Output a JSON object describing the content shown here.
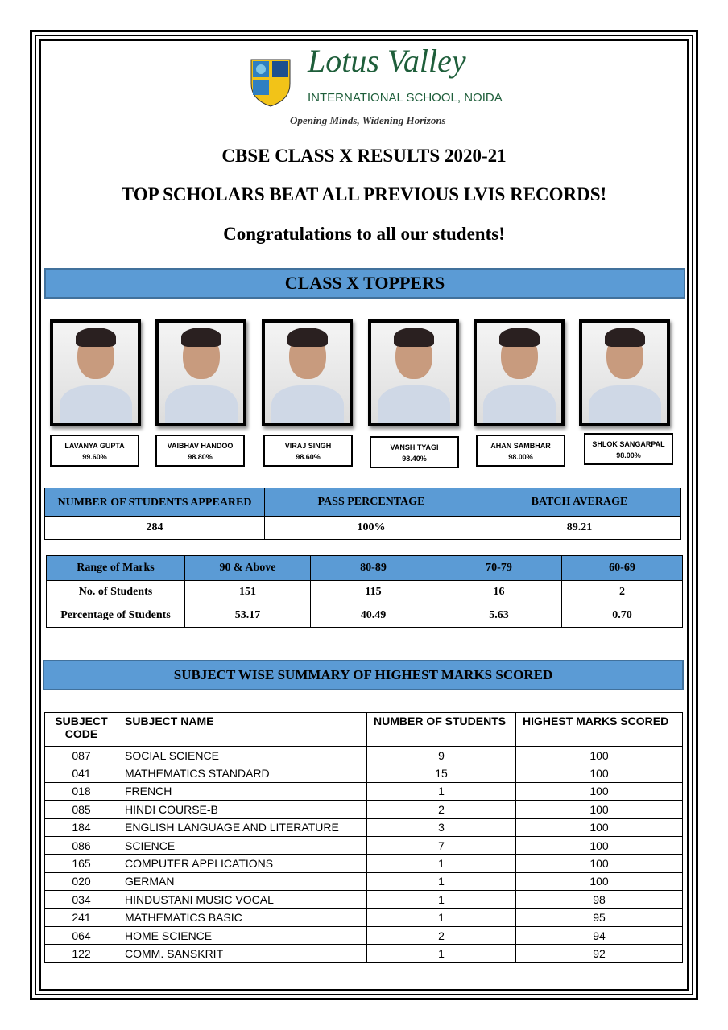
{
  "logo": {
    "name": "Lotus Valley",
    "school": "INTERNATIONAL SCHOOL, NOIDA",
    "tagline": "Opening Minds, Widening Horizons"
  },
  "headings": {
    "title": "CBSE CLASS X RESULTS 2020-21",
    "subtitle": "TOP SCHOLARS BEAT ALL PREVIOUS LVIS RECORDS!",
    "congrats": "Congratulations to all our students!",
    "toppers_banner": "CLASS X TOPPERS",
    "subject_banner": "SUBJECT WISE SUMMARY OF HIGHEST MARKS SCORED"
  },
  "toppers": [
    {
      "name": "LAVANYA GUPTA",
      "score": "99.60%"
    },
    {
      "name": "VAIBHAV HANDOO",
      "score": "98.80%"
    },
    {
      "name": "VIRAJ SINGH",
      "score": "98.60%"
    },
    {
      "name": "VANSH TYAGI",
      "score": "98.40%"
    },
    {
      "name": "AHAN SAMBHAR",
      "score": "98.00%"
    },
    {
      "name": "SHLOK SANGARPAL",
      "score": "98.00%"
    }
  ],
  "stats": {
    "headers": [
      "NUMBER OF STUDENTS APPEARED",
      "PASS PERCENTAGE",
      "BATCH AVERAGE"
    ],
    "values": [
      "284",
      "100%",
      "89.21"
    ]
  },
  "ranges": {
    "headers": [
      "Range of Marks",
      "90 & Above",
      "80-89",
      "70-79",
      "60-69"
    ],
    "rows": [
      [
        "No. of Students",
        "151",
        "115",
        "16",
        "2"
      ],
      [
        "Percentage of Students",
        "53.17",
        "40.49",
        "5.63",
        "0.70"
      ]
    ]
  },
  "subjects": {
    "headers": [
      "SUBJECT CODE",
      "SUBJECT NAME",
      "NUMBER OF STUDENTS",
      "HIGHEST MARKS SCORED"
    ],
    "rows": [
      [
        "087",
        "SOCIAL SCIENCE",
        "9",
        "100"
      ],
      [
        "041",
        "MATHEMATICS STANDARD",
        "15",
        "100"
      ],
      [
        "018",
        "FRENCH",
        "1",
        "100"
      ],
      [
        "085",
        "HINDI COURSE-B",
        "2",
        "100"
      ],
      [
        "184",
        "ENGLISH LANGUAGE AND LITERATURE",
        "3",
        "100"
      ],
      [
        "086",
        "SCIENCE",
        "7",
        "100"
      ],
      [
        "165",
        "COMPUTER APPLICATIONS",
        "1",
        "100"
      ],
      [
        "020",
        "GERMAN",
        "1",
        "100"
      ],
      [
        "034",
        "HINDUSTANI MUSIC VOCAL",
        "1",
        "98"
      ],
      [
        "241",
        "MATHEMATICS BASIC",
        "1",
        "95"
      ],
      [
        "064",
        "HOME SCIENCE",
        "2",
        "94"
      ],
      [
        "122",
        "COMM. SANSKRIT",
        "1",
        "92"
      ]
    ]
  },
  "colors": {
    "banner": "#5b9bd5",
    "logo_green": "#1e5e3a"
  }
}
